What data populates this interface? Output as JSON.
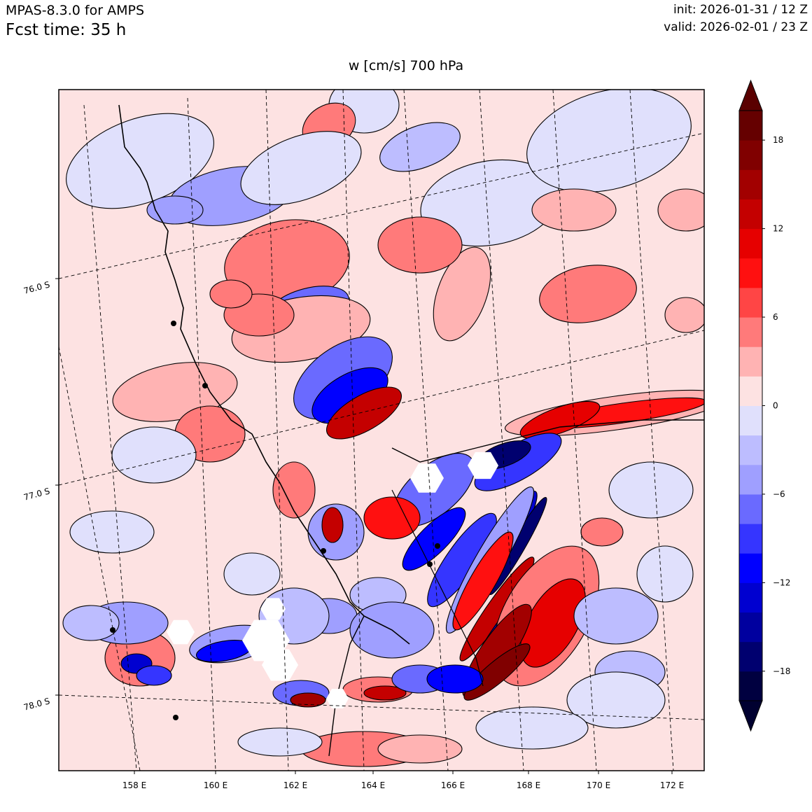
{
  "header": {
    "model": "MPAS-8.3.0 for AMPS",
    "fcst_time": "Fcst time:   35 h",
    "init": "init: 2026-01-31 / 12 Z",
    "valid": "valid: 2026-02-01 / 23 Z"
  },
  "plot_title": "w [cm/s]    700 hPa",
  "chart_data": {
    "type": "heatmap",
    "variable": "w [cm/s]",
    "level": "700 hPa",
    "x_ticks": [
      "158 E",
      "160 E",
      "162 E",
      "164 E",
      "166 E",
      "168 E",
      "170 E",
      "172 E"
    ],
    "y_ticks": [
      "76.0 S",
      "77.0 S",
      "78.0 S"
    ],
    "colorbar": {
      "levels": [
        -20,
        -18,
        -16,
        -14,
        -12,
        -10,
        -8,
        -6,
        -4,
        -2,
        0,
        2,
        4,
        6,
        8,
        10,
        12,
        14,
        16,
        18,
        20
      ],
      "tick_values": [
        -18,
        -12,
        -6,
        0,
        6,
        12,
        18
      ],
      "tick_labels": [
        "−18",
        "−12",
        "−6",
        "0",
        "6",
        "12",
        "18"
      ],
      "colors": [
        "#000040",
        "#00006f",
        "#00009f",
        "#0000d0",
        "#0000ff",
        "#3535ff",
        "#6a6aff",
        "#9f9fff",
        "#bdbdff",
        "#e0e0fc",
        "#fde2e2",
        "#ffb3b3",
        "#ff7a7a",
        "#ff4545",
        "#ff1010",
        "#e60000",
        "#c40000",
        "#a20000",
        "#800000",
        "#650000"
      ],
      "extend": "both",
      "under_color": "#000030",
      "over_color": "#5a0000"
    },
    "grid": true
  },
  "colors": {
    "background": "#fde2e2",
    "frame": "#000000"
  }
}
